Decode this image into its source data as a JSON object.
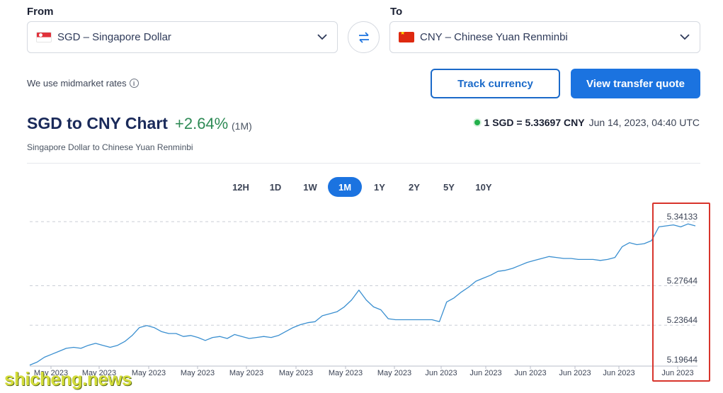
{
  "converter": {
    "from_label": "From",
    "to_label": "To",
    "from_value": "SGD – Singapore Dollar",
    "to_value": "CNY – Chinese Yuan Renminbi"
  },
  "midmarket_text": "We use midmarket rates",
  "buttons": {
    "track": "Track currency",
    "quote": "View transfer quote"
  },
  "chart_header": {
    "title": "SGD to CNY Chart",
    "change": "+2.64%",
    "period": "(1M)",
    "subtitle": "Singapore Dollar to Chinese Yuan Renminbi"
  },
  "rate": {
    "value": "1 SGD = 5.33697 CNY",
    "timestamp": "Jun 14, 2023, 04:40 UTC"
  },
  "ranges": [
    "12H",
    "1D",
    "1W",
    "1M",
    "1Y",
    "2Y",
    "5Y",
    "10Y"
  ],
  "active_range": "1M",
  "watermark": "shicheng.news",
  "colors": {
    "accent": "#1b73e0",
    "positive": "#2e8a55",
    "line": "#3a8fd0",
    "highlight": "#d8342c"
  },
  "chart_data": {
    "type": "line",
    "title": "SGD to CNY Chart",
    "y_ticks": [
      "5.34133",
      "5.27644",
      "5.23644",
      "5.19644"
    ],
    "x_ticks": [
      "May 2023",
      "May 2023",
      "May 2023",
      "May 2023",
      "May 2023",
      "May 2023",
      "May 2023",
      "May 2023",
      "Jun 2023",
      "Jun 2023",
      "Jun 2023",
      "Jun 2023",
      "Jun 2023",
      "Jun 2023"
    ],
    "ylim": [
      5.19644,
      5.34133
    ],
    "grid": true,
    "series": [
      {
        "values": [
          5.196,
          5.199,
          5.204,
          5.207,
          5.21,
          5.213,
          5.214,
          5.213,
          5.216,
          5.218,
          5.216,
          5.214,
          5.216,
          5.22,
          5.226,
          5.234,
          5.236,
          5.234,
          5.23,
          5.228,
          5.228,
          5.225,
          5.226,
          5.224,
          5.221,
          5.224,
          5.225,
          5.223,
          5.227,
          5.225,
          5.223,
          5.224,
          5.225,
          5.224,
          5.226,
          5.23,
          5.234,
          5.237,
          5.239,
          5.24,
          5.246,
          5.248,
          5.25,
          5.255,
          5.262,
          5.272,
          5.262,
          5.255,
          5.252,
          5.243,
          5.242,
          5.242,
          5.242,
          5.242,
          5.242,
          5.242,
          5.24,
          5.26,
          5.264,
          5.27,
          5.275,
          5.281,
          5.284,
          5.287,
          5.291,
          5.292,
          5.294,
          5.297,
          5.3,
          5.302,
          5.304,
          5.306,
          5.305,
          5.304,
          5.304,
          5.303,
          5.303,
          5.303,
          5.302,
          5.303,
          5.305,
          5.316,
          5.32,
          5.318,
          5.319,
          5.322,
          5.336,
          5.337,
          5.338,
          5.336,
          5.339,
          5.337
        ]
      }
    ]
  }
}
